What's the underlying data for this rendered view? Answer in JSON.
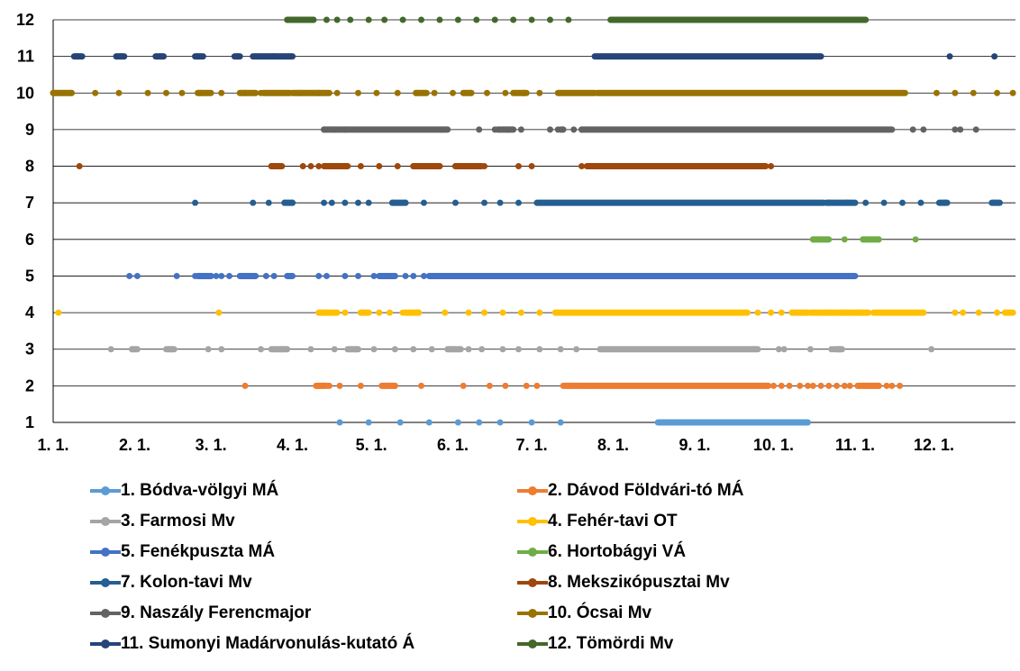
{
  "chart_data": {
    "type": "scatter",
    "title": "",
    "xlabel": "",
    "ylabel": "",
    "x_tick_labels": [
      "1. 1.",
      "2. 1.",
      "3. 1.",
      "4. 1.",
      "5. 1.",
      "6. 1.",
      "7. 1.",
      "8. 1.",
      "9. 1.",
      "10. 1.",
      "11. 1.",
      "12. 1."
    ],
    "y_tick_labels": [
      "1",
      "2",
      "3",
      "4",
      "5",
      "6",
      "7",
      "8",
      "9",
      "10",
      "11",
      "12"
    ],
    "xlim": [
      "01-01",
      "12-31"
    ],
    "ylim": [
      1,
      12
    ],
    "grid": "horizontal",
    "legend_position": "bottom",
    "series": [
      {
        "name": "1. Bódva-völgyi MÁ",
        "y": 1,
        "color": "#5b9bd5",
        "dates": [
          "04-19",
          "04-30",
          "05-12",
          "05-23",
          "06-03",
          "06-11",
          "06-19",
          "07-01",
          "07-12"
        ],
        "ranges": [
          [
            "08-18",
            "10-14"
          ]
        ]
      },
      {
        "name": "2. Dávod Földvári-tó MÁ",
        "y": 2,
        "color": "#ed7d31",
        "dates": [
          "03-14",
          "04-11",
          "04-15",
          "04-19",
          "04-27",
          "05-06",
          "05-10",
          "05-20",
          "06-05",
          "06-15",
          "06-21",
          "06-29",
          "07-03",
          "07-16",
          "07-23",
          "10-01",
          "10-04",
          "10-07",
          "10-11",
          "10-14",
          "10-16",
          "10-19",
          "10-22",
          "10-25",
          "10-28",
          "10-30",
          "11-02",
          "11-05",
          "11-08",
          "11-10",
          "11-13",
          "11-15",
          "11-18"
        ],
        "ranges": [
          [
            "04-10",
            "04-14"
          ],
          [
            "05-05",
            "05-10"
          ],
          [
            "07-13",
            "09-29"
          ],
          [
            "11-02",
            "11-10"
          ]
        ]
      },
      {
        "name": "3. Farmosi Mv",
        "y": 3,
        "color": "#a5a5a5",
        "dates": [
          "01-23",
          "01-31",
          "02-15",
          "02-29",
          "03-05",
          "03-20",
          "03-28",
          "04-08",
          "04-17",
          "04-25",
          "05-02",
          "05-10",
          "05-17",
          "05-24",
          "06-01",
          "06-07",
          "06-12",
          "06-20",
          "06-26",
          "07-04",
          "07-12",
          "07-18",
          "10-03",
          "10-05",
          "10-15",
          "10-23",
          "10-26",
          "11-30"
        ],
        "ranges": [
          [
            "01-31",
            "02-02"
          ],
          [
            "02-13",
            "02-16"
          ],
          [
            "03-24",
            "03-30"
          ],
          [
            "04-22",
            "04-26"
          ],
          [
            "05-30",
            "06-04"
          ],
          [
            "07-27",
            "09-25"
          ],
          [
            "10-24",
            "10-27"
          ]
        ]
      },
      {
        "name": "4. Fehér-tavi OT",
        "y": 4,
        "color": "#ffc000",
        "dates": [
          "01-03",
          "03-04",
          "04-12",
          "04-21",
          "04-27",
          "05-04",
          "05-08",
          "05-13",
          "05-19",
          "05-29",
          "06-07",
          "06-13",
          "06-20",
          "06-27",
          "07-04",
          "07-10",
          "09-25",
          "09-30",
          "10-04",
          "10-08",
          "10-13",
          "10-21",
          "10-27",
          "11-04",
          "12-09",
          "12-12",
          "12-18",
          "12-25"
        ],
        "ranges": [
          [
            "04-11",
            "04-18"
          ],
          [
            "04-27",
            "04-30"
          ],
          [
            "05-14",
            "05-19"
          ],
          [
            "07-10",
            "09-21"
          ],
          [
            "10-08",
            "10-14"
          ],
          [
            "10-15",
            "11-06"
          ],
          [
            "11-08",
            "11-27"
          ],
          [
            "12-28",
            "12-31"
          ]
        ]
      },
      {
        "name": "5. Fenékpuszta MÁ",
        "y": 5,
        "color": "#4472c4",
        "dates": [
          "01-30",
          "02-02",
          "02-17",
          "02-24",
          "03-01",
          "03-03",
          "03-05",
          "03-08",
          "03-15",
          "03-22",
          "03-25",
          "04-11",
          "04-14",
          "04-21",
          "04-26",
          "05-02",
          "05-08",
          "05-10",
          "05-14",
          "05-17",
          "05-21",
          "05-24",
          "05-28"
        ],
        "ranges": [
          [
            "02-25",
            "03-01"
          ],
          [
            "03-12",
            "03-18"
          ],
          [
            "03-30",
            "04-01"
          ],
          [
            "05-04",
            "05-10"
          ],
          [
            "05-23",
            "11-01"
          ]
        ]
      },
      {
        "name": "6. Hortobágyi VÁ",
        "y": 6,
        "color": "#70ad47",
        "dates": [
          "10-16",
          "10-21",
          "10-28",
          "11-04",
          "11-10",
          "11-24"
        ],
        "ranges": [
          [
            "10-16",
            "10-22"
          ],
          [
            "11-04",
            "11-10"
          ]
        ]
      },
      {
        "name": "7. Kolon-tavi Mv",
        "y": 7,
        "color": "#255e91",
        "dates": [
          "02-24",
          "03-17",
          "03-23",
          "03-29",
          "04-01",
          "04-13",
          "04-16",
          "04-21",
          "04-26",
          "04-30",
          "05-09",
          "05-14",
          "05-21",
          "06-02",
          "06-13",
          "06-19",
          "06-26",
          "10-22",
          "10-29",
          "11-05",
          "11-12",
          "11-19",
          "11-26",
          "12-05",
          "12-24"
        ],
        "ranges": [
          [
            "03-29",
            "04-01"
          ],
          [
            "05-09",
            "05-14"
          ],
          [
            "07-03",
            "10-20"
          ],
          [
            "10-21",
            "11-01"
          ],
          [
            "12-03",
            "12-06"
          ],
          [
            "12-23",
            "12-26"
          ]
        ]
      },
      {
        "name": "8. Meksziкópusztai Mv",
        "y": 8,
        "color": "#9e480e",
        "dates": [
          "01-11",
          "03-24",
          "03-27",
          "04-05",
          "04-08",
          "04-11",
          "04-14",
          "04-18",
          "04-21",
          "04-27",
          "05-04",
          "05-11",
          "05-17",
          "05-20",
          "05-24",
          "05-27",
          "06-02",
          "06-05",
          "06-09",
          "06-13",
          "06-26",
          "07-01",
          "07-20",
          "09-30"
        ],
        "ranges": [
          [
            "03-24",
            "03-28"
          ],
          [
            "04-13",
            "04-22"
          ],
          [
            "05-17",
            "05-27"
          ],
          [
            "06-02",
            "06-12"
          ],
          [
            "07-22",
            "09-28"
          ]
        ]
      },
      {
        "name": "9. Naszály Ferencmajor",
        "y": 9,
        "color": "#636363",
        "dates": [
          "04-13",
          "04-17",
          "04-21",
          "05-28",
          "06-11",
          "06-17",
          "06-22",
          "06-27",
          "07-08",
          "07-11",
          "07-17",
          "07-20",
          "11-23",
          "11-27",
          "12-09",
          "12-11",
          "12-17"
        ],
        "ranges": [
          [
            "04-13",
            "05-30"
          ],
          [
            "06-18",
            "06-24"
          ],
          [
            "07-12",
            "07-13"
          ],
          [
            "07-20",
            "11-15"
          ]
        ]
      },
      {
        "name": "10. Ócsai Mv",
        "y": 10,
        "color": "#997300",
        "dates": [
          "01-02",
          "01-08",
          "01-17",
          "01-26",
          "02-06",
          "02-13",
          "02-19",
          "02-26",
          "03-05",
          "03-14",
          "03-20",
          "04-04",
          "04-11",
          "04-18",
          "04-26",
          "05-03",
          "05-11",
          "05-18",
          "05-25",
          "06-01",
          "06-08",
          "06-14",
          "06-21",
          "06-28",
          "07-04",
          "12-02",
          "12-09",
          "12-16",
          "12-25",
          "12-31"
        ],
        "ranges": [
          [
            "01-01",
            "01-08"
          ],
          [
            "02-25",
            "03-01"
          ],
          [
            "03-12",
            "03-18"
          ],
          [
            "03-21",
            "03-31"
          ],
          [
            "04-01",
            "04-15"
          ],
          [
            "05-18",
            "05-22"
          ],
          [
            "06-05",
            "06-08"
          ],
          [
            "06-24",
            "06-29"
          ],
          [
            "07-11",
            "07-25"
          ],
          [
            "07-26",
            "11-20"
          ]
        ]
      },
      {
        "name": "11. Sumonyi Madárvonulás-kutató Á",
        "y": 11,
        "color": "#264478",
        "dates": [
          "01-10",
          "01-27",
          "02-11",
          "02-25",
          "03-11",
          "03-25",
          "12-07",
          "12-24"
        ],
        "ranges": [
          [
            "01-09",
            "01-12"
          ],
          [
            "01-25",
            "01-28"
          ],
          [
            "02-09",
            "02-12"
          ],
          [
            "02-24",
            "02-27"
          ],
          [
            "03-10",
            "03-12"
          ],
          [
            "03-17",
            "04-01"
          ],
          [
            "07-25",
            "10-19"
          ]
        ]
      },
      {
        "name": "12. Tömördi Mv",
        "y": 12,
        "color": "#43682b",
        "dates": [
          "04-09",
          "04-14",
          "04-18",
          "04-23",
          "04-30",
          "05-06",
          "05-13",
          "05-20",
          "05-27",
          "06-03",
          "06-10",
          "06-17",
          "06-24",
          "07-01",
          "07-08",
          "07-15"
        ],
        "ranges": [
          [
            "03-30",
            "04-09"
          ],
          [
            "07-31",
            "11-05"
          ]
        ]
      }
    ]
  }
}
